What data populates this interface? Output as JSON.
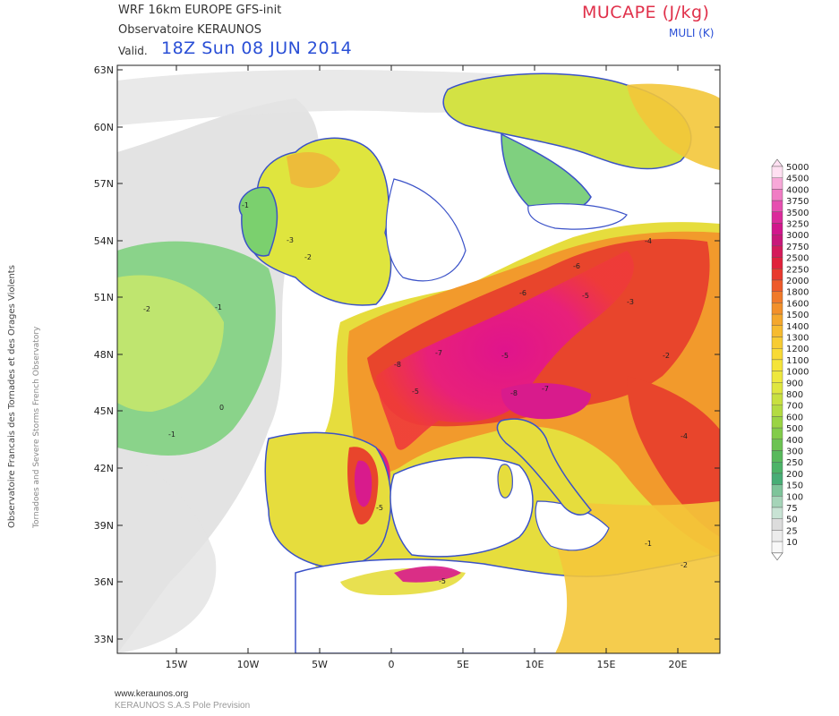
{
  "header": {
    "model_line": "WRF 16km EUROPE   GFS-init",
    "org_line": "Observatoire KERAUNOS",
    "valid_prefix": "Valid.",
    "valid_time": "18Z Sun 08 JUN 2014",
    "title": "MUCAPE (J/kg)",
    "subtitle": "MULI (K)"
  },
  "side_text": {
    "line1": "Observatoire Francais des Tornades et des Orages Violents",
    "line2": "Tornadoes and Severe Storms French Observatory"
  },
  "footer": {
    "url": "www.keraunos.org",
    "company": "KERAUNOS S.A.S Pole Prevision"
  },
  "map": {
    "lat_labels": [
      "63N",
      "60N",
      "57N",
      "54N",
      "51N",
      "48N",
      "45N",
      "42N",
      "39N",
      "36N",
      "33N"
    ],
    "lon_labels": [
      "15W",
      "10W",
      "5W",
      "0",
      "5E",
      "10E",
      "15E",
      "20E"
    ],
    "colors": {
      "coast": "#3b52c8",
      "high": "#d81b8c",
      "mid": "#e8432b",
      "orange": "#f39c2a",
      "yellow": "#e8e23a",
      "green": "#5cc15c",
      "lightgreen": "#9bdc9b",
      "grey": "#cfcfcf"
    },
    "li_labels": [
      "-1",
      "-2",
      "-3",
      "-4",
      "-5",
      "-6",
      "-7",
      "-8",
      "0"
    ]
  },
  "legend": {
    "levels": [
      "5000",
      "4500",
      "4000",
      "3750",
      "3500",
      "3250",
      "3000",
      "2750",
      "2500",
      "2250",
      "2000",
      "1800",
      "1600",
      "1500",
      "1400",
      "1300",
      "1200",
      "1100",
      "1000",
      "900",
      "800",
      "700",
      "600",
      "500",
      "400",
      "300",
      "250",
      "200",
      "150",
      "100",
      "75",
      "50",
      "25",
      "10"
    ],
    "colors": [
      "#ffe0f2",
      "#f7a8d8",
      "#f07cc4",
      "#e64fb0",
      "#db2a9b",
      "#d1168c",
      "#c8177a",
      "#d41a5a",
      "#e0213b",
      "#e8392e",
      "#ee5a2a",
      "#f07a2a",
      "#f2902a",
      "#f4a72c",
      "#f6bb2f",
      "#f7cc33",
      "#f8da36",
      "#f5e43a",
      "#eee83e",
      "#dfe63f",
      "#c8e040",
      "#b3db42",
      "#9ad444",
      "#82cc4a",
      "#6cc352",
      "#58b95c",
      "#4cb368",
      "#48ad76",
      "#7ec49a",
      "#a5d4b8",
      "#c8e3d4",
      "#dcdcdc",
      "#ececec",
      "#f8f8f8"
    ]
  }
}
